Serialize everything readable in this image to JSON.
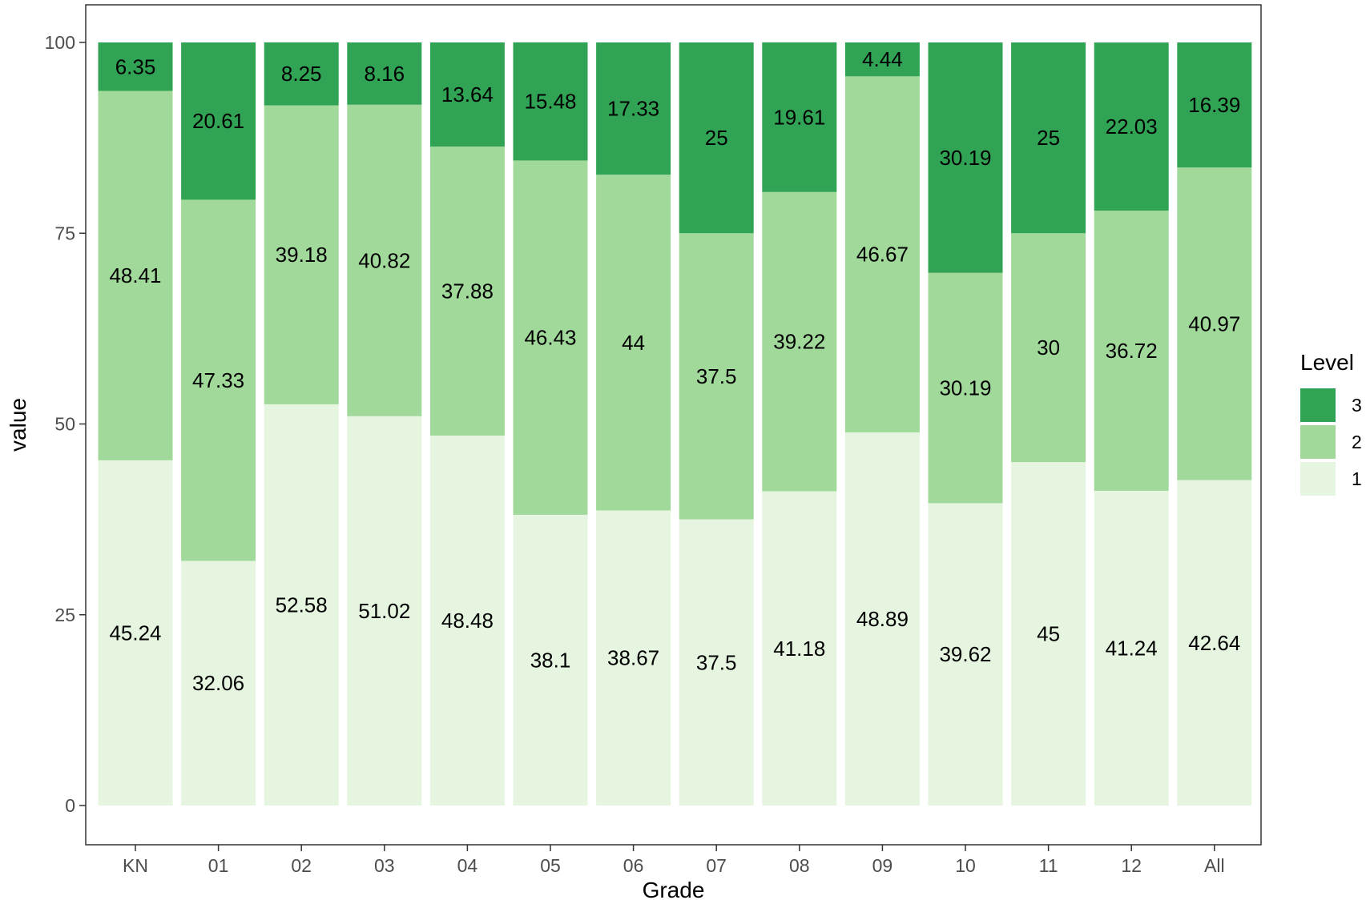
{
  "chart_data": {
    "type": "bar",
    "stacked": true,
    "title": "",
    "xlabel": "Grade",
    "ylabel": "value",
    "ylim": [
      0,
      100
    ],
    "yticks": [
      0,
      25,
      50,
      75,
      100
    ],
    "grid": false,
    "categories": [
      "KN",
      "01",
      "02",
      "03",
      "04",
      "05",
      "06",
      "07",
      "08",
      "09",
      "10",
      "11",
      "12",
      "All"
    ],
    "legend": {
      "title": "Level",
      "position": "right",
      "order": [
        "3",
        "2",
        "1"
      ]
    },
    "series": [
      {
        "name": "1",
        "color": "#e5f5e0",
        "values": [
          45.24,
          32.06,
          52.58,
          51.02,
          48.48,
          38.1,
          38.67,
          37.5,
          41.18,
          48.89,
          39.62,
          45,
          41.24,
          42.64
        ]
      },
      {
        "name": "2",
        "color": "#a1d99b",
        "values": [
          48.41,
          47.33,
          39.18,
          40.82,
          37.88,
          46.43,
          44,
          37.5,
          39.22,
          46.67,
          30.19,
          30,
          36.72,
          40.97
        ]
      },
      {
        "name": "3",
        "color": "#31a354",
        "values": [
          6.35,
          20.61,
          8.25,
          8.16,
          13.64,
          15.48,
          17.33,
          25,
          19.61,
          4.44,
          30.19,
          25,
          22.03,
          16.39
        ]
      }
    ],
    "data_labels": {
      "1": [
        "45.24",
        "32.06",
        "52.58",
        "51.02",
        "48.48",
        "38.1",
        "38.67",
        "37.5",
        "41.18",
        "48.89",
        "39.62",
        "45",
        "41.24",
        "42.64"
      ],
      "2": [
        "48.41",
        "47.33",
        "39.18",
        "40.82",
        "37.88",
        "46.43",
        "44",
        "37.5",
        "39.22",
        "46.67",
        "30.19",
        "30",
        "36.72",
        "40.97"
      ],
      "3": [
        "6.35",
        "20.61",
        "8.25",
        "8.16",
        "13.64",
        "15.48",
        "17.33",
        "25",
        "19.61",
        "4.44",
        "30.19",
        "25",
        "22.03",
        "16.39"
      ]
    }
  }
}
